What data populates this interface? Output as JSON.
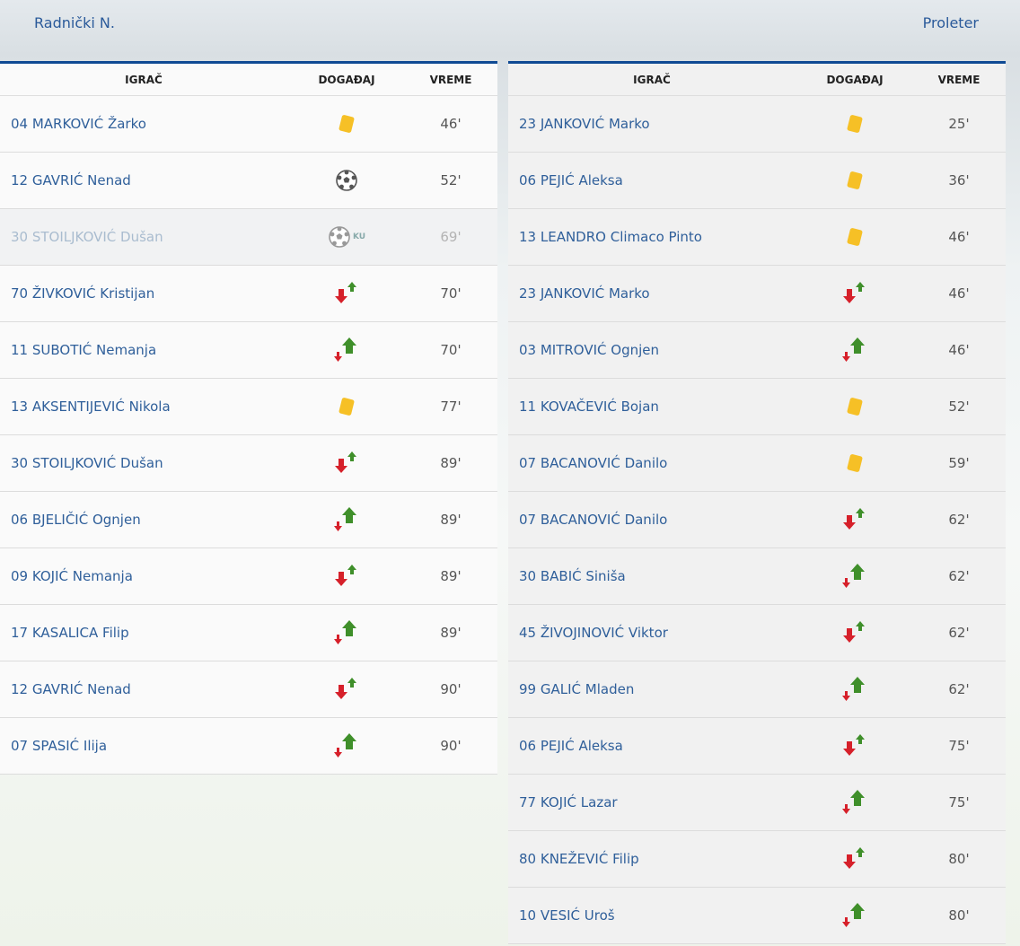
{
  "home": {
    "team_name": "Radnički N.",
    "headers": {
      "player": "IGRAČ",
      "event": "DOGAĐAJ",
      "time": "VREME"
    },
    "events": [
      {
        "player": "04 MARKOVIĆ Žarko",
        "type": "yellow-card",
        "time": "46'"
      },
      {
        "player": "12 GAVRIĆ Nenad",
        "type": "goal",
        "time": "52'"
      },
      {
        "player": "30 STOILJKOVIĆ Dušan",
        "type": "goal-cancelled",
        "badge": "KU",
        "time": "69'"
      },
      {
        "player": "70 ŽIVKOVIĆ Kristijan",
        "type": "sub-out",
        "time": "70'"
      },
      {
        "player": "11 SUBOTIĆ Nemanja",
        "type": "sub-in",
        "time": "70'"
      },
      {
        "player": "13 AKSENTIJEVIĆ Nikola",
        "type": "yellow-card",
        "time": "77'"
      },
      {
        "player": "30 STOILJKOVIĆ Dušan",
        "type": "sub-out",
        "time": "89'"
      },
      {
        "player": "06 BJELIČIĆ Ognjen",
        "type": "sub-in",
        "time": "89'"
      },
      {
        "player": "09 KOJIĆ Nemanja",
        "type": "sub-out",
        "time": "89'"
      },
      {
        "player": "17 KASALICA Filip",
        "type": "sub-in",
        "time": "89'"
      },
      {
        "player": "12 GAVRIĆ Nenad",
        "type": "sub-out",
        "time": "90'"
      },
      {
        "player": "07 SPASIĆ Ilija",
        "type": "sub-in",
        "time": "90'"
      }
    ]
  },
  "away": {
    "team_name": "Proleter",
    "headers": {
      "player": "IGRAČ",
      "event": "DOGAĐAJ",
      "time": "VREME"
    },
    "events": [
      {
        "player": "23 JANKOVIĆ Marko",
        "type": "yellow-card",
        "time": "25'"
      },
      {
        "player": "06 PEJIĆ Aleksa",
        "type": "yellow-card",
        "time": "36'"
      },
      {
        "player": "13 LEANDRO Climaco Pinto",
        "type": "yellow-card",
        "time": "46'"
      },
      {
        "player": "23 JANKOVIĆ Marko",
        "type": "sub-out",
        "time": "46'"
      },
      {
        "player": "03 MITROVIĆ Ognjen",
        "type": "sub-in",
        "time": "46'"
      },
      {
        "player": "11 KOVAČEVIĆ Bojan",
        "type": "yellow-card",
        "time": "52'"
      },
      {
        "player": "07 BACANOVIĆ Danilo",
        "type": "yellow-card",
        "time": "59'"
      },
      {
        "player": "07 BACANOVIĆ Danilo",
        "type": "sub-out",
        "time": "62'"
      },
      {
        "player": "30 BABIĆ Siniša",
        "type": "sub-in",
        "time": "62'"
      },
      {
        "player": "45 ŽIVOJINOVIĆ Viktor",
        "type": "sub-out",
        "time": "62'"
      },
      {
        "player": "99 GALIĆ Mladen",
        "type": "sub-in",
        "time": "62'"
      },
      {
        "player": "06 PEJIĆ Aleksa",
        "type": "sub-out",
        "time": "75'"
      },
      {
        "player": "77 KOJIĆ Lazar",
        "type": "sub-in",
        "time": "75'"
      },
      {
        "player": "80 KNEŽEVIĆ Filip",
        "type": "sub-out",
        "time": "80'"
      },
      {
        "player": "10 VESIĆ Uroš",
        "type": "sub-in",
        "time": "80'"
      }
    ]
  },
  "colors": {
    "accent": "#0f4a94",
    "player_link": "#2f5f9a",
    "yellow_card": "#f6c026",
    "arrow_down": "#d6202a",
    "arrow_up": "#3f8f2a"
  }
}
